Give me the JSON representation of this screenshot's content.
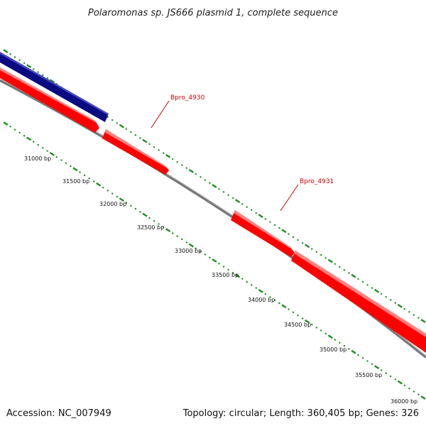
{
  "title": "Polaromonas sp. JS666 plasmid 1, complete sequence",
  "footer": {
    "accession": "Accession: NC_007949",
    "summary": "Topology: circular; Length: 360,405 bp; Genes: 326"
  },
  "gene_labels": [
    {
      "text": "Bpro_4930"
    },
    {
      "text": "Bpro_4931"
    }
  ],
  "ticks": [
    {
      "text": "31000 bp"
    },
    {
      "text": "31500 bp"
    },
    {
      "text": "32000 bp"
    },
    {
      "text": "32500 bp"
    },
    {
      "text": "33000 bp"
    },
    {
      "text": "33500 bp"
    },
    {
      "text": "34000 bp"
    },
    {
      "text": "34500 bp"
    },
    {
      "text": "35000 bp"
    },
    {
      "text": "35500 bp"
    },
    {
      "text": "36000 bp"
    }
  ],
  "colors": {
    "forward_gene": "#ff0000",
    "reverse_gene": "#0a0a82",
    "backbone": "#888888",
    "gc_dots": "#1e8c1e",
    "label_red": "#cc0000"
  }
}
